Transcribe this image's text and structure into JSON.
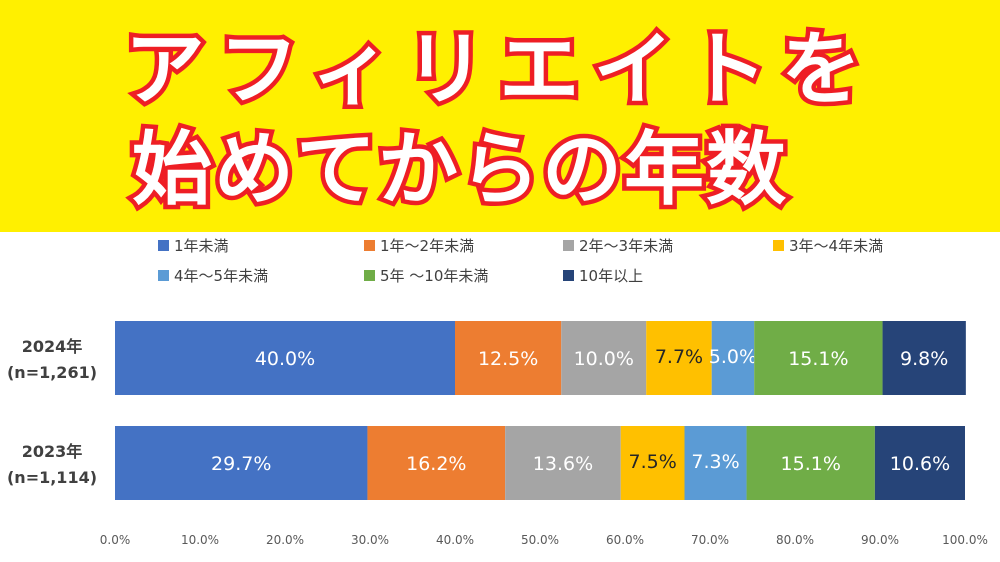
{
  "banner": {
    "line1": "アフィリエイトを",
    "line2": "始めてからの年数",
    "background": "#fff000",
    "text_stroke": "#ee1f25"
  },
  "chart_data": {
    "type": "bar",
    "orientation": "horizontal-stacked-100",
    "categories": [
      "2024年\n(n=1,261)",
      "2023年\n(n=1,114)"
    ],
    "series": [
      {
        "name": "1年未満",
        "color": "#4472c4",
        "values": [
          40.0,
          29.7
        ],
        "labels": [
          "40.0%",
          "29.7%"
        ]
      },
      {
        "name": "1年～2年未満",
        "color": "#ed7d31",
        "values": [
          12.5,
          16.2
        ],
        "labels": [
          "12.5%",
          "16.2%"
        ]
      },
      {
        "name": "2年～3年未満",
        "color": "#a5a5a5",
        "values": [
          10.0,
          13.6
        ],
        "labels": [
          "10.0%",
          "13.6%"
        ]
      },
      {
        "name": "3年～4年未満",
        "color": "#ffc000",
        "values": [
          7.7,
          7.5
        ],
        "labels": [
          "7.7%",
          "7.5%"
        ]
      },
      {
        "name": "4年～5年未満",
        "color": "#5b9bd5",
        "values": [
          5.0,
          7.3
        ],
        "labels": [
          "5.0%",
          "7.3%"
        ]
      },
      {
        "name": "5年 ～10年未満",
        "color": "#70ad47",
        "values": [
          15.1,
          15.1
        ],
        "labels": [
          "15.1%",
          "15.1%"
        ]
      },
      {
        "name": "10年以上",
        "color": "#264478",
        "values": [
          9.8,
          10.6
        ],
        "labels": [
          "9.8%",
          "10.6%"
        ]
      }
    ],
    "xlim": [
      0,
      100
    ],
    "x_ticks": [
      "0.0%",
      "10.0%",
      "20.0%",
      "30.0%",
      "40.0%",
      "50.0%",
      "60.0%",
      "70.0%",
      "80.0%",
      "90.0%",
      "100.0%"
    ],
    "legend_position": "top",
    "grid": false
  }
}
